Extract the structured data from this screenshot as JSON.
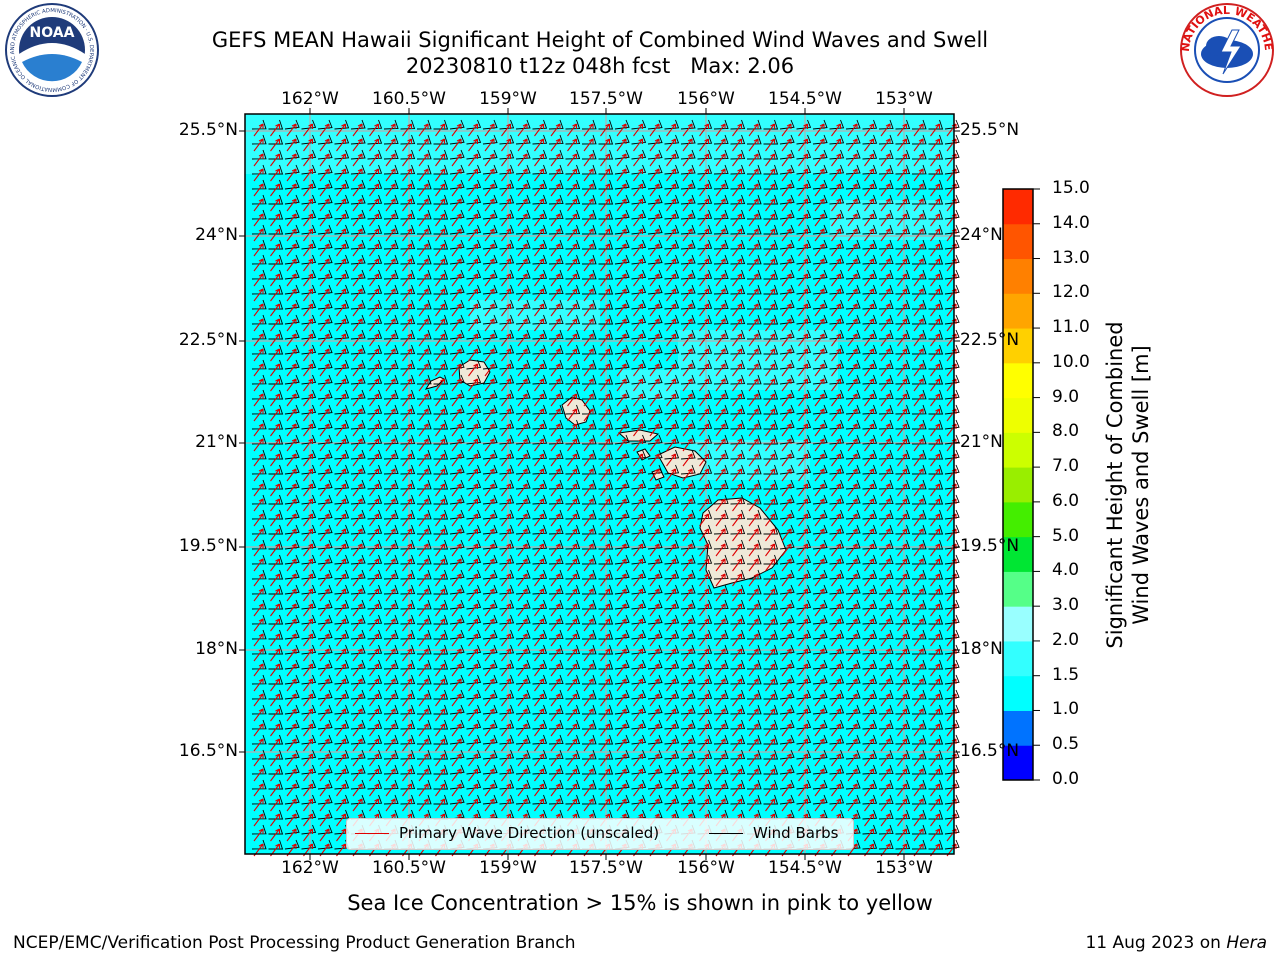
{
  "header": {
    "title_line1": "GEFS MEAN Hawaii Significant Height of Combined Wind Waves and Swell",
    "title_line2": "20230810 t12z 048h fcst   Max: 2.06"
  },
  "map": {
    "lon_ticks": [
      "162°W",
      "160.5°W",
      "159°W",
      "157.5°W",
      "156°W",
      "154.5°W",
      "153°W"
    ],
    "lat_ticks": [
      "25.5°N",
      "24°N",
      "22.5°N",
      "21°N",
      "19.5°N",
      "18°N",
      "16.5°N"
    ],
    "colors": {
      "ocean": "#00ffff",
      "ocean_light": "#33ffff",
      "land": "#efe9d8",
      "wave_arrow": "#e00000",
      "wind_barb": "#000000",
      "grid": "#b0b0b0"
    }
  },
  "legend": {
    "wave_label": "Primary Wave Direction (unscaled)",
    "barb_label": "Wind Barbs"
  },
  "colorbar": {
    "title": "Significant Height of Combined\nWind Waves and Swell [m]",
    "labels": [
      "0.0",
      "0.5",
      "1.0",
      "1.5",
      "2.0",
      "3.0",
      "4.0",
      "5.0",
      "6.0",
      "7.0",
      "8.0",
      "9.0",
      "10.0",
      "11.0",
      "12.0",
      "13.0",
      "14.0",
      "15.0"
    ],
    "colors": [
      "#0000ff",
      "#0073ff",
      "#00ffff",
      "#33ffff",
      "#99ffff",
      "#55ff88",
      "#00e633",
      "#44ee00",
      "#99ee00",
      "#ccff00",
      "#eeff00",
      "#ffff00",
      "#ffd000",
      "#ffa500",
      "#ff8000",
      "#ff5500",
      "#ff2a00"
    ]
  },
  "footer": {
    "note": "Sea Ice Concentration > 15% is shown in pink to yellow",
    "credit_left": "NCEP/EMC/Verification Post Processing Product Generation Branch",
    "credit_date": "11 Aug 2023 on ",
    "credit_host": "Hera"
  },
  "logos": {
    "noaa_text": "NOAA",
    "noaa_ring": "NATIONAL OCEANIC AND ATMOSPHERIC ADMINISTRATION · U.S. DEPARTMENT OF COMMERCE",
    "nws_ring": "NATIONAL WEATHER SERVICE"
  }
}
